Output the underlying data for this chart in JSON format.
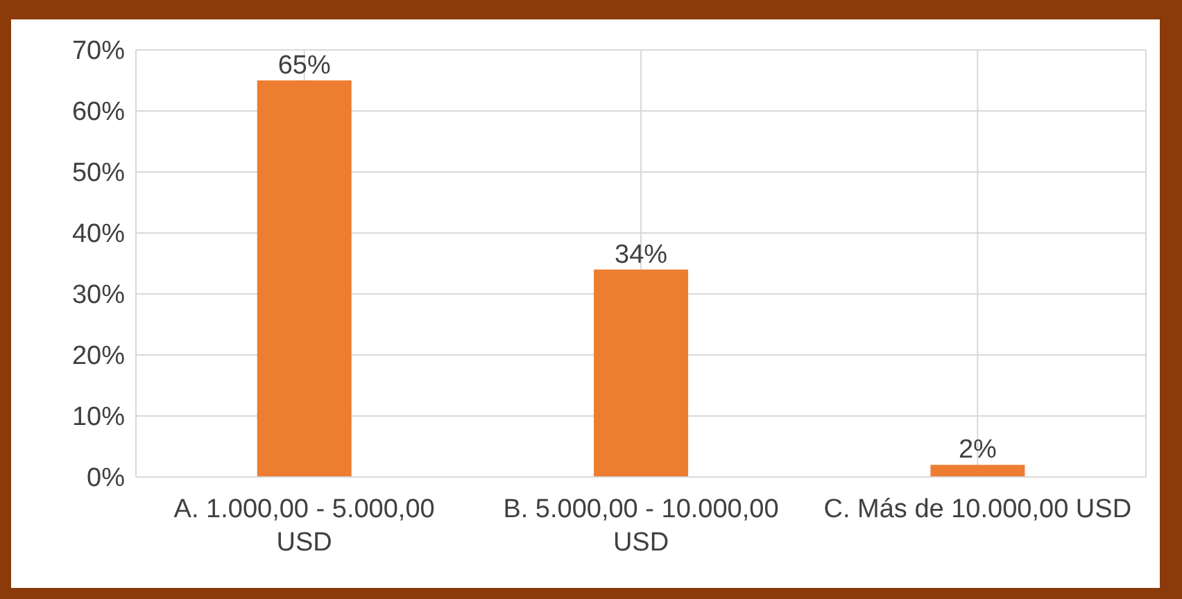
{
  "chart_data": {
    "type": "bar",
    "categories": [
      "A. 1.000,00 - 5.000,00 USD",
      "B. 5.000,00 - 10.000,00 USD",
      "C. Más de 10.000,00 USD"
    ],
    "values": [
      65,
      34,
      2
    ],
    "color": "#ed7d31",
    "value_labels": [
      "65%",
      "34%",
      "2%"
    ],
    "ylim": [
      0,
      70
    ],
    "yticks": [
      {
        "value": 0,
        "label": "0%"
      },
      {
        "value": 10,
        "label": "10%"
      },
      {
        "value": 20,
        "label": "20%"
      },
      {
        "value": 30,
        "label": "30%"
      },
      {
        "value": 40,
        "label": "40%"
      },
      {
        "value": 50,
        "label": "50%"
      },
      {
        "value": 60,
        "label": "60%"
      },
      {
        "value": 70,
        "label": "70%"
      }
    ],
    "grid": true
  }
}
